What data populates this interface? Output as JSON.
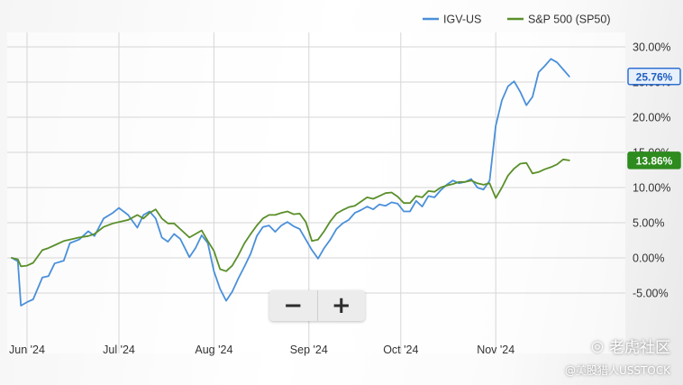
{
  "chart_data": {
    "type": "line",
    "ylim": [
      -7.5,
      32.5
    ],
    "y_ticks": [
      30,
      25,
      20,
      15,
      10,
      5,
      0,
      -5
    ],
    "y_tick_labels": [
      "30.00%",
      "25.00%",
      "20.00%",
      "15.00%",
      "10.00%",
      "5.00%",
      "0.00%",
      "-5.00%"
    ],
    "x_ticks": [
      {
        "day": 0,
        "label": "Jun '24"
      },
      {
        "day": 30,
        "label": "Jul '24"
      },
      {
        "day": 61,
        "label": "Aug '24"
      },
      {
        "day": 92,
        "label": "Sep '24"
      },
      {
        "day": 122,
        "label": "Oct '24"
      },
      {
        "day": 153,
        "label": "Nov '24"
      }
    ],
    "grid": true,
    "legend_position": "top-right",
    "series": [
      {
        "name": "IGV-US",
        "color": "#4a90d9",
        "last_value_label": "25.76%",
        "x": [
          -5,
          -3,
          -2,
          0,
          2,
          5,
          7,
          9,
          12,
          14,
          17,
          20,
          22,
          25,
          28,
          30,
          33,
          36,
          38,
          40,
          42,
          44,
          46,
          48,
          50,
          53,
          55,
          57,
          59,
          61,
          63,
          65,
          67,
          69,
          71,
          73,
          75,
          77,
          79,
          81,
          83,
          85,
          87,
          89,
          91,
          93,
          95,
          97,
          99,
          101,
          103,
          105,
          107,
          109,
          111,
          113,
          115,
          117,
          119,
          121,
          123,
          125,
          127,
          129,
          131,
          133,
          135,
          137,
          139,
          141,
          143,
          145,
          147,
          149,
          151,
          153,
          155,
          157,
          159,
          161,
          163,
          165,
          167,
          169,
          171,
          173,
          175,
          177
        ],
        "y": [
          0,
          -0.5,
          -6.8,
          -6.3,
          -5.9,
          -2.8,
          -2.6,
          -0.8,
          -0.4,
          2.1,
          2.6,
          3.8,
          3.1,
          5.6,
          6.4,
          7.1,
          6.1,
          4.3,
          6.1,
          6.6,
          5.6,
          2.9,
          2.3,
          3.4,
          2.7,
          0.1,
          1.4,
          3.2,
          2.1,
          -1.9,
          -4.4,
          -6.1,
          -4.8,
          -2.9,
          -1.2,
          0.6,
          3.1,
          4.4,
          4.6,
          3.7,
          4.6,
          5.1,
          4.5,
          4.1,
          2.6,
          1.1,
          -0.1,
          1.4,
          2.6,
          4.1,
          4.9,
          5.4,
          6.4,
          6.8,
          7.3,
          6.9,
          7.6,
          7.4,
          7.9,
          7.7,
          6.6,
          6.6,
          8.1,
          7.3,
          8.8,
          8.6,
          9.6,
          10.4,
          11.0,
          10.6,
          10.8,
          11.2,
          10.0,
          9.7,
          11.0,
          18.8,
          22.4,
          24.4,
          25.1,
          23.6,
          21.7,
          22.9,
          26.4,
          27.3,
          28.3,
          27.8,
          26.8,
          25.8
        ]
      },
      {
        "name": "S&P 500 (SP50)",
        "color": "#5a8f2a",
        "last_value_label": "13.86%",
        "x": [
          -5,
          -3,
          -2,
          0,
          2,
          5,
          7,
          9,
          12,
          14,
          17,
          20,
          22,
          25,
          28,
          30,
          33,
          36,
          38,
          40,
          42,
          44,
          46,
          48,
          50,
          53,
          55,
          57,
          59,
          61,
          63,
          65,
          67,
          69,
          71,
          73,
          75,
          77,
          79,
          81,
          83,
          85,
          87,
          89,
          91,
          93,
          95,
          97,
          99,
          101,
          103,
          105,
          107,
          109,
          111,
          113,
          115,
          117,
          119,
          121,
          123,
          125,
          127,
          129,
          131,
          133,
          135,
          137,
          139,
          141,
          143,
          145,
          147,
          149,
          151,
          153,
          155,
          157,
          159,
          161,
          163,
          165,
          167,
          169,
          171,
          173,
          175,
          177
        ],
        "y": [
          0,
          -0.2,
          -1.2,
          -1.1,
          -0.7,
          1.1,
          1.4,
          1.8,
          2.4,
          2.6,
          2.9,
          3.1,
          3.4,
          4.4,
          4.9,
          5.1,
          5.4,
          6.1,
          5.6,
          6.4,
          6.9,
          5.6,
          4.9,
          4.9,
          4.1,
          2.9,
          3.4,
          3.9,
          2.4,
          1.0,
          -1.6,
          -1.9,
          -1.1,
          0.4,
          2.1,
          3.4,
          4.6,
          5.6,
          6.1,
          6.1,
          6.4,
          6.6,
          6.2,
          6.3,
          5.1,
          2.4,
          2.6,
          3.8,
          5.2,
          6.3,
          6.8,
          7.2,
          7.4,
          8.0,
          8.6,
          8.4,
          8.8,
          9.2,
          9.3,
          8.7,
          7.8,
          7.8,
          8.8,
          8.6,
          9.5,
          9.4,
          10.0,
          10.3,
          10.5,
          10.8,
          10.8,
          11.0,
          10.6,
          10.4,
          10.6,
          8.5,
          10.0,
          11.7,
          12.7,
          13.4,
          13.5,
          12.0,
          12.2,
          12.6,
          12.9,
          13.3,
          14.0,
          13.86
        ]
      }
    ]
  },
  "zoom": {
    "minus_label": "−",
    "plus_label": "+"
  },
  "watermark": {
    "brand": "老虎社区",
    "handle": "@美股猎人USSTOCK"
  }
}
